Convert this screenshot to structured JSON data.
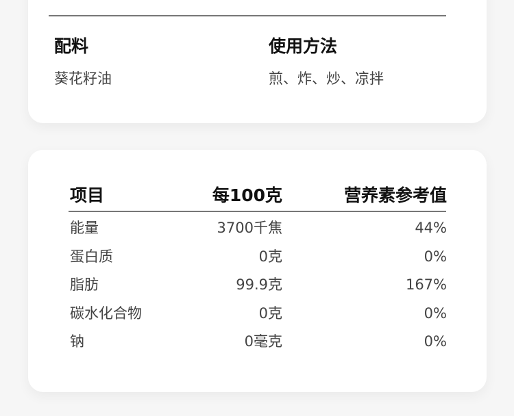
{
  "info": {
    "ingredients": {
      "title": "配料",
      "value": "葵花籽油"
    },
    "usage": {
      "title": "使用方法",
      "value": "煎、炸、炒、凉拌"
    }
  },
  "nutrition": {
    "headers": [
      "项目",
      "每100克",
      "营养素参考值"
    ],
    "rows": [
      [
        "能量",
        "3700千焦",
        "44%"
      ],
      [
        "蛋白质",
        "0克",
        "0%"
      ],
      [
        "脂肪",
        "99.9克",
        "167%"
      ],
      [
        "碳水化合物",
        "0克",
        "0%"
      ],
      [
        "钠",
        "0毫克",
        "0%"
      ]
    ]
  }
}
